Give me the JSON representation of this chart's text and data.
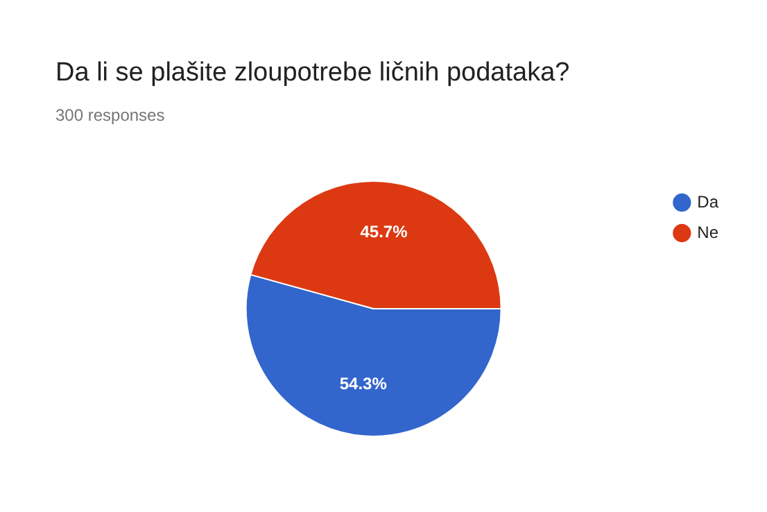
{
  "chart_data": {
    "type": "pie",
    "title": "Da li se plašite zloupotrebe ličnih podataka?",
    "subtitle": "300 responses",
    "categories": [
      "Da",
      "Ne"
    ],
    "values": [
      54.3,
      45.7
    ],
    "colors": [
      "#3366cc",
      "#dc3912"
    ],
    "value_labels": [
      "54.3%",
      "45.7%"
    ],
    "legend": "right"
  }
}
